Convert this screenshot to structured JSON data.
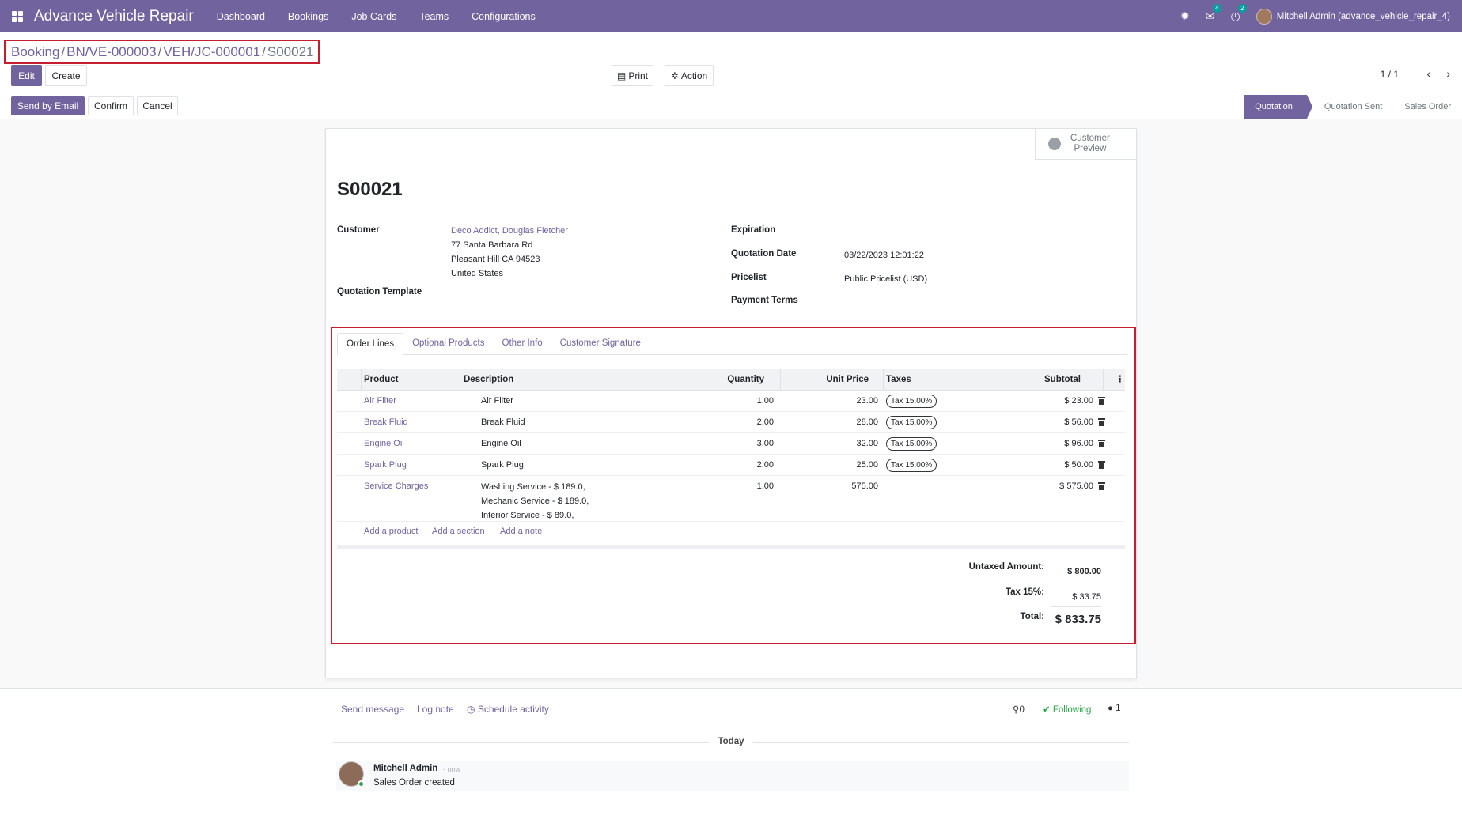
{
  "navbar": {
    "app_title": "Advance Vehicle Repair",
    "menu": [
      "Dashboard",
      "Bookings",
      "Job Cards",
      "Teams",
      "Configurations"
    ],
    "chat_count": "4",
    "activity_count": "2",
    "user": "Mitchell Admin (advance_vehicle_repair_4)"
  },
  "breadcrumb": {
    "items": [
      "Booking",
      "BN/VE-000003",
      "VEH/JC-000001"
    ],
    "current": "S00021"
  },
  "buttons": {
    "edit": "Edit",
    "create": "Create",
    "print": "Print",
    "action": "Action",
    "send_email": "Send by Email",
    "confirm": "Confirm",
    "cancel": "Cancel"
  },
  "pager": "1 / 1",
  "stages": [
    "Quotation",
    "Quotation Sent",
    "Sales Order"
  ],
  "customer_preview": [
    "Customer",
    "Preview"
  ],
  "order": {
    "name": "S00021",
    "labels": {
      "customer": "Customer",
      "template": "Quotation Template",
      "expiration": "Expiration",
      "quotation_date": "Quotation Date",
      "pricelist": "Pricelist",
      "payment_terms": "Payment Terms"
    },
    "customer_name": "Deco Addict, Douglas Fletcher",
    "address": [
      "77 Santa Barbara Rd",
      "Pleasant Hill CA 94523",
      "United States"
    ],
    "quotation_date": "03/22/2023 12:01:22",
    "pricelist": "Public Pricelist (USD)"
  },
  "tabs": [
    "Order Lines",
    "Optional Products",
    "Other Info",
    "Customer Signature"
  ],
  "table": {
    "headers": [
      "Product",
      "Description",
      "Quantity",
      "Unit Price",
      "Taxes",
      "Subtotal"
    ],
    "rows": [
      {
        "product": "Air Filter",
        "description": "Air Filter",
        "qty": "1.00",
        "price": "23.00",
        "tax": "Tax 15.00%",
        "subtotal": "$ 23.00"
      },
      {
        "product": "Break Fluid",
        "description": "Break Fluid",
        "qty": "2.00",
        "price": "28.00",
        "tax": "Tax 15.00%",
        "subtotal": "$ 56.00"
      },
      {
        "product": "Engine Oil",
        "description": "Engine Oil",
        "qty": "3.00",
        "price": "32.00",
        "tax": "Tax 15.00%",
        "subtotal": "$ 96.00"
      },
      {
        "product": "Spark Plug",
        "description": "Spark Plug",
        "qty": "2.00",
        "price": "25.00",
        "tax": "Tax 15.00%",
        "subtotal": "$ 50.00"
      }
    ],
    "service_row": {
      "product": "Service Charges",
      "description": [
        "Washing Service - $ 189.0,",
        "Mechanic Service - $ 189.0,",
        "Interior Service - $ 89.0,"
      ],
      "qty": "1.00",
      "price": "575.00",
      "subtotal": "$ 575.00"
    },
    "add_links": [
      "Add a product",
      "Add a section",
      "Add a note"
    ]
  },
  "totals": {
    "untaxed_label": "Untaxed Amount:",
    "untaxed": "$ 800.00",
    "tax_label": "Tax 15%:",
    "tax": "$ 33.75",
    "total_label": "Total:",
    "total": "$ 833.75"
  },
  "chatter": {
    "send_message": "Send message",
    "log_note": "Log note",
    "schedule": "Schedule activity",
    "attachments": "0",
    "following": "Following",
    "followers": "1",
    "today": "Today",
    "author": "Mitchell Admin",
    "time": "- now",
    "message": "Sales Order created"
  }
}
